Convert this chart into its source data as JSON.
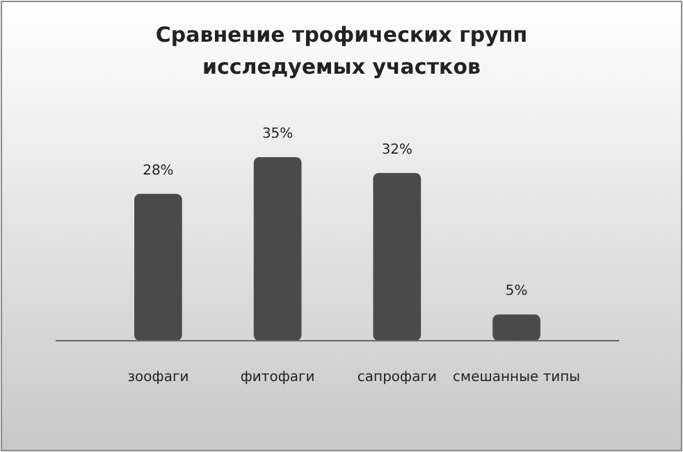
{
  "chart_data": {
    "type": "bar",
    "title": "Сравнение трофических групп исследуемых участков",
    "categories": [
      "зоофаги",
      "фитофаги",
      "сапрофаги",
      "смешанные типы"
    ],
    "values": [
      28,
      35,
      32,
      5
    ],
    "value_labels": [
      "28%",
      "35%",
      "32%",
      "5%"
    ],
    "color": "#4a4a4a"
  }
}
